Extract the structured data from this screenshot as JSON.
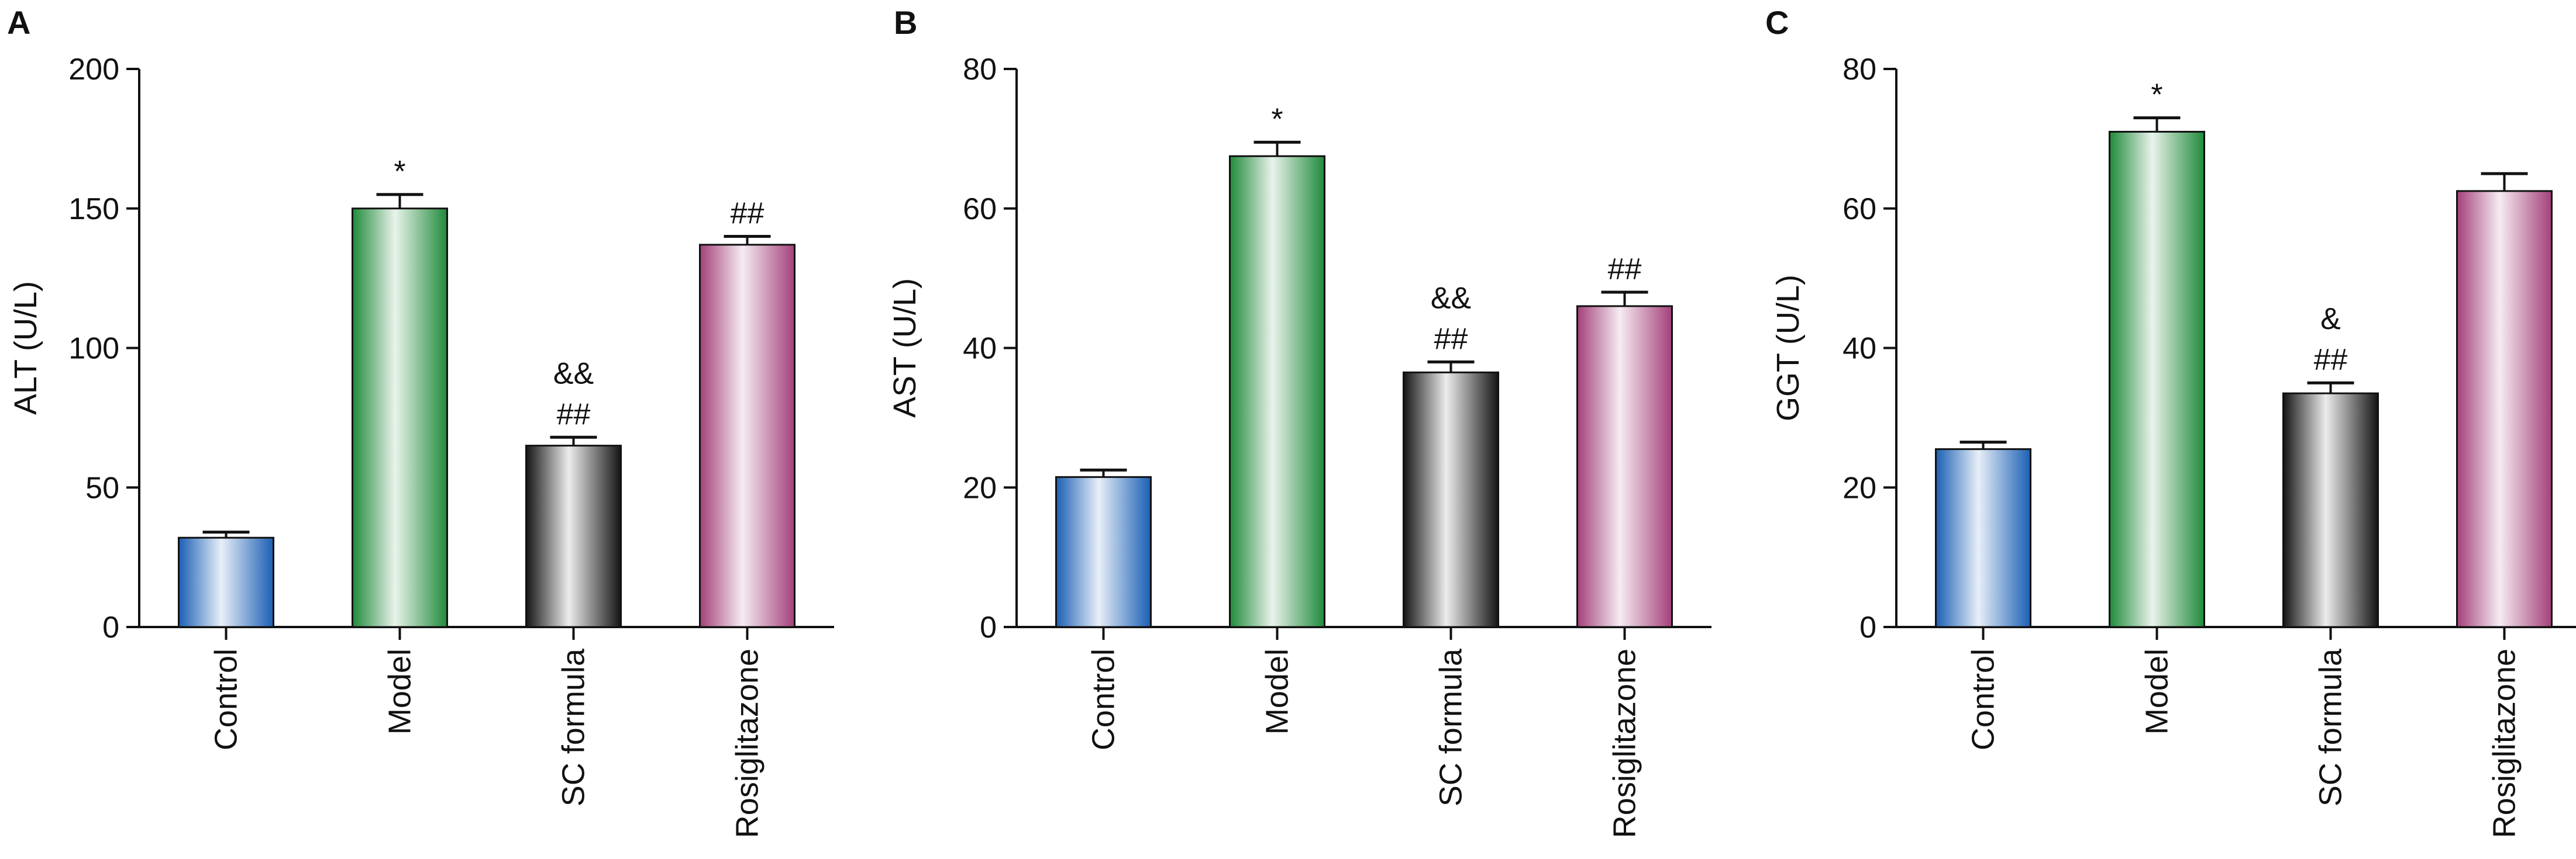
{
  "colors": {
    "Control": "#1a5fb4",
    "Model": "#1f8a3a",
    "SC formula": "#151515",
    "Rosiglitazone": "#a3407a"
  },
  "chart_data": [
    {
      "type": "bar",
      "panel_label": "A",
      "categories": [
        "Control",
        "Model",
        "SC formula",
        "Rosiglitazone"
      ],
      "values": [
        32,
        150,
        65,
        137
      ],
      "errors": [
        2,
        5,
        3,
        3
      ],
      "annotations": [
        [],
        [
          "*"
        ],
        [
          "&&",
          "##"
        ],
        [
          "##"
        ]
      ],
      "ylabel": "ALT (U/L)",
      "ylim": [
        0,
        200
      ],
      "yticks": [
        0,
        50,
        100,
        150,
        200
      ],
      "grid": false,
      "legend": "none"
    },
    {
      "type": "bar",
      "panel_label": "B",
      "categories": [
        "Control",
        "Model",
        "SC formula",
        "Rosiglitazone"
      ],
      "values": [
        21.5,
        67.5,
        36.5,
        46
      ],
      "errors": [
        1,
        2,
        1.5,
        2
      ],
      "annotations": [
        [],
        [
          "*"
        ],
        [
          "&&",
          "##"
        ],
        [
          "##"
        ]
      ],
      "ylabel": "AST (U/L)",
      "ylim": [
        0,
        80
      ],
      "yticks": [
        0,
        20,
        40,
        60,
        80
      ],
      "grid": false,
      "legend": "none"
    },
    {
      "type": "bar",
      "panel_label": "C",
      "categories": [
        "Control",
        "Model",
        "SC formula",
        "Rosiglitazone"
      ],
      "values": [
        25.5,
        71,
        33.5,
        62.5
      ],
      "errors": [
        1,
        2,
        1.5,
        2.5
      ],
      "annotations": [
        [],
        [
          "*"
        ],
        [
          "&",
          "##"
        ],
        []
      ],
      "ylabel": "GGT (U/L)",
      "ylim": [
        0,
        80
      ],
      "yticks": [
        0,
        20,
        40,
        60,
        80
      ],
      "grid": false,
      "legend": "none"
    }
  ]
}
